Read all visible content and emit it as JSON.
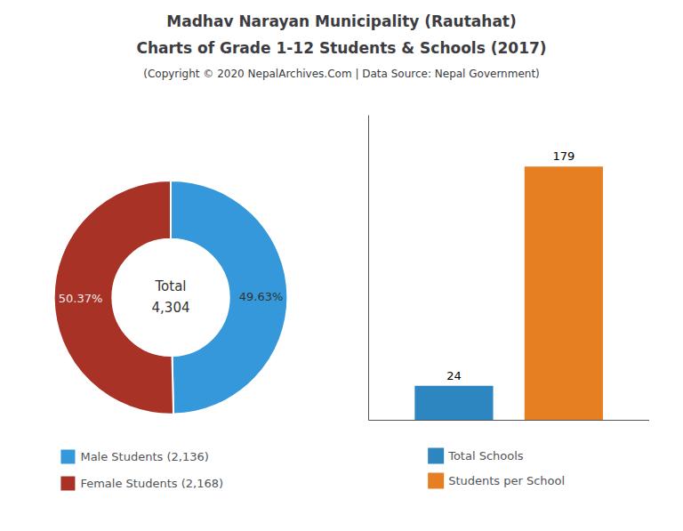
{
  "chart_data": [
    {
      "type": "pie",
      "title": "Madhav Narayan Municipality (Rautahat)",
      "subtitle": "Charts of Grade 1-12 Students & Schools (2017)",
      "annotations": [
        "(Copyright © 2020 NepalArchives.Com | Data Source: Nepal Government)",
        "Total",
        "4,304"
      ],
      "categories": [
        "Male Students (2,136)",
        "Female Students (2,168)"
      ],
      "values": [
        49.63,
        50.37
      ],
      "value_labels": [
        "49.63%",
        "50.37%"
      ],
      "colors": [
        "#3498db",
        "#a93226"
      ],
      "data_labels": true,
      "legend": "bottom"
    },
    {
      "type": "bar",
      "categories": [
        null
      ],
      "series": [
        {
          "name": "Total Schools",
          "color": "#2e86c1",
          "values": [
            24
          ]
        },
        {
          "name": "Students per School",
          "color": "#e67e22",
          "values": [
            179
          ]
        }
      ],
      "ylim": [
        0,
        215
      ],
      "tick_labels": false,
      "grid": false,
      "data_labels": true,
      "legend": "bottom"
    }
  ]
}
